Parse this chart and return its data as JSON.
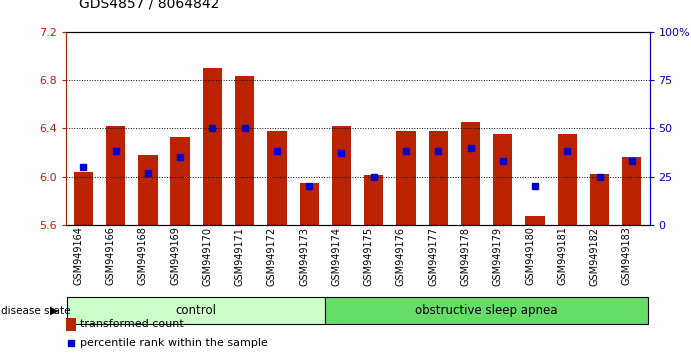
{
  "title": "GDS4857 / 8064842",
  "samples": [
    "GSM949164",
    "GSM949166",
    "GSM949168",
    "GSM949169",
    "GSM949170",
    "GSM949171",
    "GSM949172",
    "GSM949173",
    "GSM949174",
    "GSM949175",
    "GSM949176",
    "GSM949177",
    "GSM949178",
    "GSM949179",
    "GSM949180",
    "GSM949181",
    "GSM949182",
    "GSM949183"
  ],
  "transformed_count": [
    6.04,
    6.42,
    6.18,
    6.33,
    6.9,
    6.83,
    6.38,
    5.95,
    6.42,
    6.01,
    6.38,
    6.38,
    6.45,
    6.35,
    5.67,
    6.35,
    6.02,
    6.16
  ],
  "percentile_rank": [
    30,
    38,
    27,
    35,
    50,
    50,
    38,
    20,
    37,
    25,
    38,
    38,
    40,
    33,
    20,
    38,
    25,
    33
  ],
  "groups": [
    "control",
    "control",
    "control",
    "control",
    "control",
    "control",
    "control",
    "control",
    "obstructive sleep apnea",
    "obstructive sleep apnea",
    "obstructive sleep apnea",
    "obstructive sleep apnea",
    "obstructive sleep apnea",
    "obstructive sleep apnea",
    "obstructive sleep apnea",
    "obstructive sleep apnea",
    "obstructive sleep apnea",
    "obstructive sleep apnea"
  ],
  "group_colors": {
    "control": "#ccffcc",
    "obstructive sleep apnea": "#66dd66"
  },
  "bar_color": "#bb2200",
  "percentile_color": "#0000cc",
  "ymin": 5.6,
  "ymax": 7.2,
  "yticks": [
    5.6,
    6.0,
    6.4,
    6.8,
    7.2
  ],
  "right_yticks_vals": [
    0,
    25,
    50,
    75,
    100
  ],
  "right_yticks_labels": [
    "0",
    "25",
    "50",
    "75",
    "100%"
  ]
}
